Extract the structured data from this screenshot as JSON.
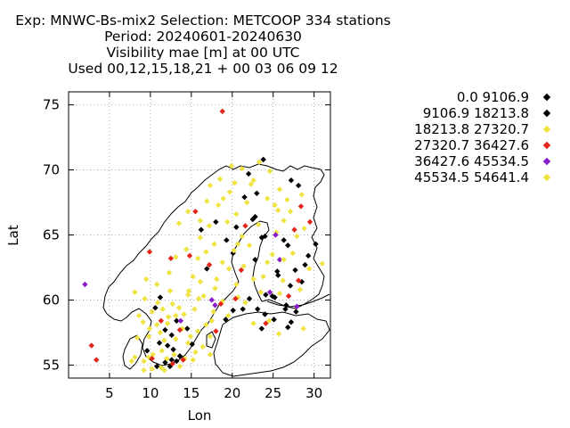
{
  "chart_data": {
    "type": "scatter",
    "title_lines": [
      "Exp: MNWC-Bs-mix2   Selection: METCOOP    334 stations",
      "Period: 20240601-20240630",
      "Visibility mae [m] at  00 UTC",
      "Used 00,12,15,18,21 + 00 03 06 09 12"
    ],
    "xlabel": "Lon",
    "ylabel": "Lat",
    "xlim": [
      0,
      32
    ],
    "ylim": [
      54,
      76
    ],
    "xticks": [
      5,
      10,
      15,
      20,
      25,
      30
    ],
    "yticks": [
      55,
      60,
      65,
      70,
      75
    ],
    "grid": true,
    "legend_position": "right",
    "colors": {
      "black": "#000000",
      "yellow": "#f0e442",
      "red": "#e2261a",
      "purple": "#8a1cc9"
    },
    "series": [
      {
        "name": "0.0 9106.9",
        "color": "#000000",
        "points": [
          [
            22,
            69.7
          ],
          [
            23.8,
            70.8
          ],
          [
            27.2,
            69.2
          ],
          [
            28.1,
            68.8
          ],
          [
            21.5,
            67.9
          ],
          [
            22.8,
            66.4
          ],
          [
            18,
            66
          ],
          [
            16.2,
            65.4
          ],
          [
            20.5,
            65.6
          ],
          [
            24,
            64.9
          ],
          [
            26.3,
            64.6
          ],
          [
            30.2,
            64.3
          ],
          [
            20.1,
            63.6
          ],
          [
            28.9,
            62.7
          ],
          [
            27.7,
            62.3
          ],
          [
            25.5,
            62.2
          ],
          [
            27.1,
            61.1
          ],
          [
            24.1,
            60.4
          ],
          [
            22.1,
            60.1
          ],
          [
            25.2,
            60.2
          ],
          [
            26.5,
            59.3
          ],
          [
            27.8,
            59.1
          ],
          [
            27.2,
            58.3
          ],
          [
            26.8,
            57.9
          ],
          [
            25.1,
            58.5
          ],
          [
            24,
            58.9
          ],
          [
            23.1,
            59.3
          ],
          [
            21.3,
            59.3
          ],
          [
            20.1,
            59.2
          ],
          [
            19.2,
            58.5
          ],
          [
            11.2,
            60.2
          ],
          [
            10.6,
            59.4
          ],
          [
            13.2,
            58.4
          ],
          [
            12.6,
            57.3
          ],
          [
            12.1,
            56.5
          ],
          [
            13.6,
            55.7
          ],
          [
            12.6,
            55.4
          ],
          [
            12.4,
            54.9
          ],
          [
            10.8,
            54.9
          ],
          [
            9.6,
            56.1
          ],
          [
            11.8,
            55.2
          ]
        ]
      },
      {
        "name": "9106.9 18213.8",
        "color": "#000000",
        "points": [
          [
            23,
            68.2
          ],
          [
            22.5,
            66.2
          ],
          [
            23.6,
            64.8
          ],
          [
            26.8,
            64.2
          ],
          [
            29.3,
            63.4
          ],
          [
            19.3,
            64.6
          ],
          [
            16.9,
            62.4
          ],
          [
            22.8,
            63.1
          ],
          [
            28.5,
            61.4
          ],
          [
            25.6,
            61.9
          ],
          [
            24.9,
            60.3
          ],
          [
            26.6,
            59.6
          ],
          [
            23.6,
            57.8
          ],
          [
            14.5,
            57.8
          ],
          [
            11.8,
            57.7
          ],
          [
            11.1,
            56.7
          ],
          [
            12.8,
            56.2
          ],
          [
            13.2,
            55.3
          ],
          [
            15.1,
            56.6
          ]
        ]
      },
      {
        "name": "18213.8 27320.7",
        "color": "#f0e442",
        "points": [
          [
            18.5,
            69.3
          ],
          [
            20.3,
            69
          ],
          [
            21.2,
            70.1
          ],
          [
            24.6,
            69.9
          ],
          [
            17.3,
            68.8
          ],
          [
            19.7,
            68.3
          ],
          [
            25.8,
            68.5
          ],
          [
            28.5,
            68.1
          ],
          [
            16.9,
            67.6
          ],
          [
            21.8,
            67.5
          ],
          [
            25.2,
            67.3
          ],
          [
            27.1,
            66.8
          ],
          [
            14.6,
            66.8
          ],
          [
            18.3,
            67.3
          ],
          [
            20.5,
            66.6
          ],
          [
            26.3,
            66.1
          ],
          [
            13.5,
            65.9
          ],
          [
            16.1,
            64.8
          ],
          [
            17.8,
            64.3
          ],
          [
            21.2,
            64.9
          ],
          [
            25.4,
            65.2
          ],
          [
            28.8,
            65.5
          ],
          [
            14.4,
            63.9
          ],
          [
            15.8,
            63.2
          ],
          [
            18.8,
            62.9
          ],
          [
            21.4,
            62.6
          ],
          [
            24.3,
            62.9
          ],
          [
            27.4,
            63.6
          ],
          [
            13.1,
            63.3
          ],
          [
            12.3,
            62.1
          ],
          [
            15.2,
            61.8
          ],
          [
            18.1,
            61.6
          ],
          [
            20.5,
            61.2
          ],
          [
            22.6,
            61.6
          ],
          [
            26.2,
            61.5
          ],
          [
            29.4,
            62.4
          ],
          [
            31,
            62.8
          ],
          [
            9.5,
            61.6
          ],
          [
            10.8,
            61.2
          ],
          [
            12.4,
            60.7
          ],
          [
            14.6,
            60.4
          ],
          [
            16.5,
            60.3
          ],
          [
            18.8,
            59.9
          ],
          [
            20.7,
            60.2
          ],
          [
            23.5,
            60.6
          ],
          [
            25.8,
            60.5
          ],
          [
            28.3,
            60.8
          ],
          [
            8.1,
            60.6
          ],
          [
            9.3,
            60.1
          ],
          [
            10.2,
            59.1
          ],
          [
            11.5,
            59.3
          ],
          [
            13.5,
            59.4
          ],
          [
            15.4,
            59.3
          ],
          [
            17.7,
            59.1
          ],
          [
            19.5,
            58.8
          ],
          [
            22.6,
            58.2
          ],
          [
            24.5,
            58.4
          ],
          [
            25.7,
            57.4
          ],
          [
            9.1,
            58.3
          ],
          [
            10.8,
            58.1
          ],
          [
            12.1,
            58.2
          ],
          [
            13.9,
            57.8
          ],
          [
            15.8,
            57.6
          ],
          [
            17.3,
            57.2
          ],
          [
            8.4,
            57.1
          ],
          [
            9.8,
            57.2
          ],
          [
            11.7,
            56.9
          ],
          [
            14.6,
            56.7
          ],
          [
            16.4,
            56.4
          ],
          [
            8.1,
            55.6
          ],
          [
            9.2,
            55.3
          ],
          [
            10.3,
            55.8
          ],
          [
            11.4,
            56.1
          ],
          [
            12.9,
            55.8
          ],
          [
            14.2,
            55.5
          ],
          [
            15.2,
            55.4
          ],
          [
            10.2,
            54.7
          ],
          [
            11.3,
            54.8
          ],
          [
            13.6,
            54.9
          ],
          [
            7.7,
            55.3
          ],
          [
            14.7,
            60.7
          ],
          [
            16.1,
            61.4
          ],
          [
            19.6,
            62.4
          ],
          [
            22.1,
            64.2
          ],
          [
            24.9,
            63.5
          ],
          [
            27.9,
            64.9
          ],
          [
            23.2,
            65.8
          ],
          [
            19.4,
            66
          ],
          [
            17.2,
            65.7
          ],
          [
            25.6,
            66.9
          ],
          [
            22.3,
            68.9
          ],
          [
            18.9,
            67.8
          ],
          [
            26.7,
            67.7
          ],
          [
            20.2,
            63.8
          ],
          [
            16.8,
            63.7
          ],
          [
            23.8,
            61.8
          ],
          [
            21.6,
            59.8
          ],
          [
            17.5,
            58.4
          ],
          [
            14.1,
            58.9
          ],
          [
            12.7,
            59.7
          ],
          [
            11.2,
            57.5
          ],
          [
            13.1,
            57
          ],
          [
            15.5,
            56
          ],
          [
            9.8,
            55.6
          ],
          [
            12,
            55.5
          ]
        ]
      },
      {
        "name": "27320.7 36427.6",
        "color": "#e2261a",
        "points": [
          [
            18.8,
            74.5
          ],
          [
            15.5,
            66.8
          ],
          [
            28.4,
            67.2
          ],
          [
            29.5,
            66
          ],
          [
            21.6,
            65.7
          ],
          [
            27.6,
            65.4
          ],
          [
            9.9,
            63.7
          ],
          [
            14.8,
            63.4
          ],
          [
            12.5,
            63.2
          ],
          [
            17.2,
            62.7
          ],
          [
            21.1,
            62.3
          ],
          [
            20.4,
            60.1
          ],
          [
            26.9,
            60.3
          ],
          [
            28.1,
            61.5
          ],
          [
            18.6,
            59.7
          ],
          [
            24.1,
            58.2
          ],
          [
            11.3,
            58.4
          ],
          [
            13.6,
            57.7
          ],
          [
            18,
            57.6
          ],
          [
            14,
            55.4
          ],
          [
            12.7,
            55.1
          ],
          [
            10.2,
            55.5
          ],
          [
            3.4,
            55.4
          ],
          [
            2.8,
            56.5
          ]
        ]
      },
      {
        "name": "36427.6 45534.5",
        "color": "#8a1cc9",
        "points": [
          [
            2,
            61.2
          ],
          [
            17.5,
            60
          ],
          [
            17.9,
            59.6
          ],
          [
            25.3,
            65
          ],
          [
            25.8,
            63.1
          ],
          [
            13.7,
            58.4
          ],
          [
            27.9,
            59.5
          ],
          [
            24.6,
            60.6
          ]
        ]
      },
      {
        "name": "45534.5 54641.4",
        "color": "#f0e442",
        "points": [
          [
            23.3,
            70.6
          ],
          [
            19.9,
            70.3
          ],
          [
            22.6,
            69.2
          ],
          [
            24.3,
            67.8
          ],
          [
            16.1,
            66.1
          ],
          [
            20.7,
            64.3
          ],
          [
            26.3,
            63.1
          ],
          [
            17.9,
            60.9
          ],
          [
            15.9,
            60.1
          ],
          [
            13.1,
            58.8
          ],
          [
            10.9,
            59.8
          ],
          [
            8.6,
            58.8
          ],
          [
            12.2,
            58.7
          ],
          [
            9.9,
            57.8
          ],
          [
            14.9,
            57.2
          ],
          [
            17.3,
            55.8
          ],
          [
            11.7,
            54.6
          ],
          [
            9.2,
            54.6
          ],
          [
            16.8,
            58.1
          ],
          [
            28.7,
            57.8
          ]
        ]
      }
    ]
  }
}
